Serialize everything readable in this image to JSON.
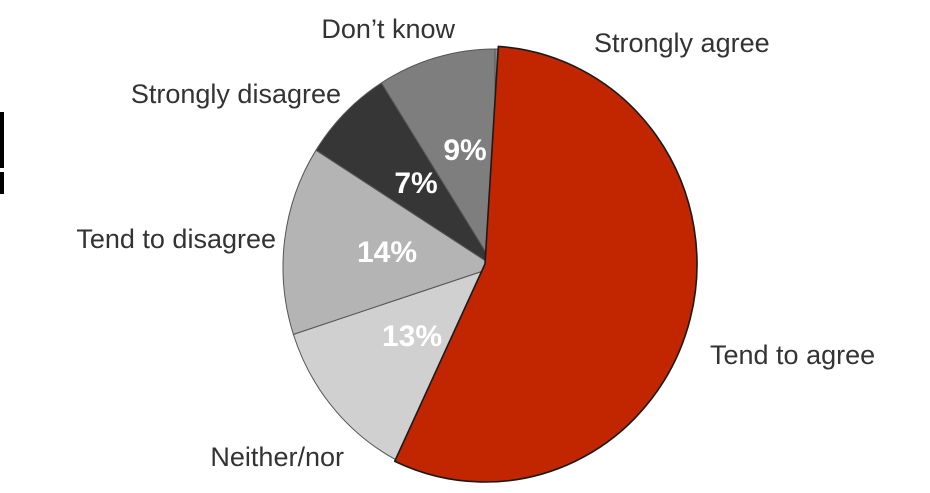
{
  "chart_data": {
    "type": "pie",
    "start_angle_deg": 0,
    "direction": "clockwise",
    "slices": [
      {
        "key": "strongly-agree",
        "label": "Strongly agree",
        "value": 1,
        "value_label": "",
        "color": "#8a8a8a"
      },
      {
        "key": "tend-to-agree",
        "label": "Tend to agree",
        "value": 56,
        "value_label": "",
        "color": "#c12600",
        "exploded": true
      },
      {
        "key": "neither-nor",
        "label": "Neither/nor",
        "value": 13,
        "value_label": "13%",
        "color": "#d0d0d0"
      },
      {
        "key": "tend-to-disagree",
        "label": "Tend to disagree",
        "value": 14,
        "value_label": "14%",
        "color": "#b4b4b4"
      },
      {
        "key": "strongly-disagree",
        "label": "Strongly disagree",
        "value": 7,
        "value_label": "7%",
        "color": "#363636"
      },
      {
        "key": "dont-know",
        "label": "Don’t know",
        "value": 9,
        "value_label": "9%",
        "color": "#7e7e7e"
      }
    ]
  }
}
